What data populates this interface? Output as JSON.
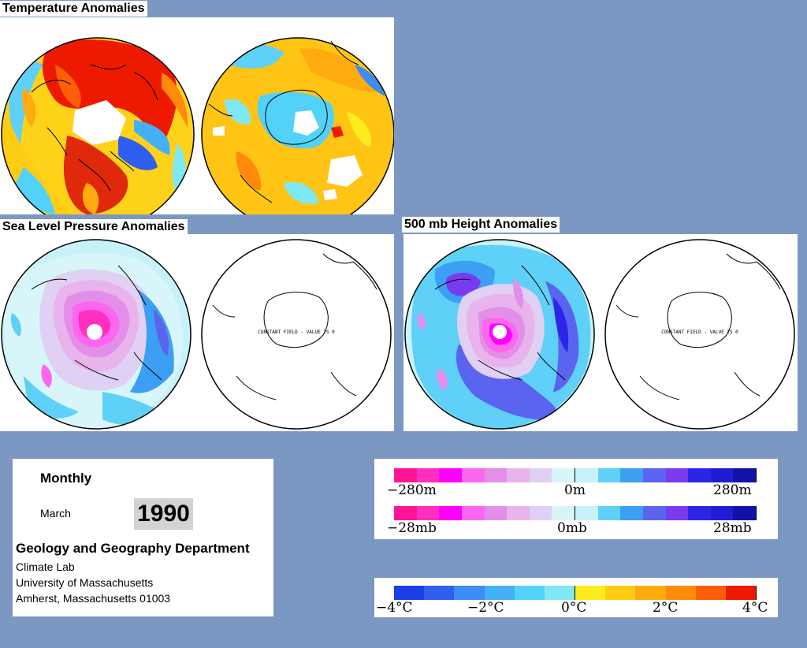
{
  "titles": {
    "temperature": "Temperature Anomalies",
    "slp": "Sea Level Pressure Anomalies",
    "height": "500 mb Height Anomalies"
  },
  "constant_field_note": "CONSTANT FIELD - VALUE IS 0",
  "info": {
    "frequency": "Monthly",
    "month": "March",
    "year": "1990",
    "department": "Geology and Geography Department",
    "lines": [
      "Climate Lab",
      "University of Massachusetts",
      "Amherst, Massachusetts 01003"
    ]
  },
  "legends": {
    "height": {
      "min": "−280m",
      "mid": "0m",
      "max": "280m"
    },
    "pressure": {
      "min": "−28mb",
      "mid": "0mb",
      "max": "28mb"
    },
    "temperature": {
      "ticks": [
        "−4°C",
        "−2°C",
        "0°C",
        "2°C",
        "4°C"
      ]
    }
  },
  "colors": {
    "background": "#7b98c2",
    "anomaly_scale": [
      "#ff1493",
      "#ff2fc0",
      "#ff00ff",
      "#ff66f0",
      "#e38ee8",
      "#e9b3ec",
      "#e0d0f4",
      "#d8f6fa",
      "#c8f2fa",
      "#5fd0f8",
      "#3c9ff4",
      "#5a64ee",
      "#7a3af0",
      "#2c25e8",
      "#1f1cd2",
      "#1212a8"
    ],
    "temperature_scale": [
      "#1b3ee6",
      "#2f5ff0",
      "#3e8cf6",
      "#44b0f8",
      "#52d2f8",
      "#7ee9f4",
      "#ffec1e",
      "#ffcc14",
      "#ffab10",
      "#ff8a0c",
      "#ff5f08",
      "#ee1a00"
    ]
  }
}
